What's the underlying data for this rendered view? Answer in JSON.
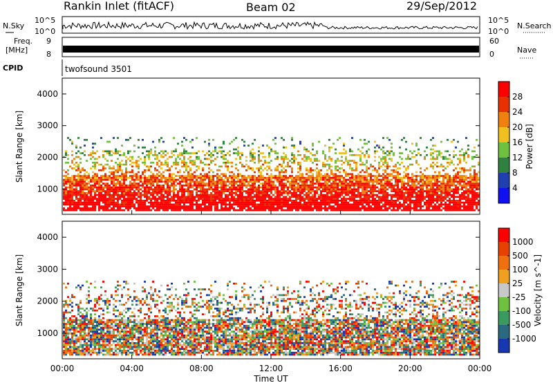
{
  "header": {
    "title": "Rankin Inlet (fitACF)",
    "beam": "Beam 02",
    "date": "29/Sep/2012"
  },
  "top_panels": {
    "nsky_label": "N.Sky",
    "nsearch_label": "N.Search",
    "freq_label_line1": "Freq.",
    "freq_label_line2": "[MHz]",
    "nave_label": "Nave",
    "cpid_label": "CPID",
    "cpid_value": "twofsound 3501",
    "noise_left_top": "10^5",
    "noise_left_bottom": "10^0",
    "noise_right_top": "10^5",
    "noise_right_bottom": "10^0",
    "freq_left_top": "9",
    "freq_left_bottom": "8",
    "nave_right_top": "60",
    "nave_right_bottom": "0"
  },
  "chart_data": [
    {
      "type": "heatmap",
      "name": "power",
      "xlabel": "",
      "ylabel": "Slant Range [km]",
      "x_ticks": [
        "00:00",
        "04:00",
        "08:00",
        "12:00",
        "16:00",
        "20:00",
        "00:00"
      ],
      "xlim_hours": [
        0,
        24
      ],
      "ylim": [
        200,
        4500
      ],
      "y_ticks": [
        1000,
        2000,
        3000,
        4000
      ],
      "colorbar": {
        "label": "Power [dB]",
        "ticks": [
          "4",
          "8",
          "12",
          "16",
          "20",
          "24",
          "28"
        ],
        "colors": [
          "#1010f0",
          "#2040b0",
          "#308040",
          "#70c040",
          "#f0c020",
          "#f08010",
          "#e83000",
          "#ff0000"
        ]
      }
    },
    {
      "type": "heatmap",
      "name": "velocity",
      "xlabel": "Time UT",
      "ylabel": "Slant Range [km]",
      "x_ticks": [
        "00:00",
        "04:00",
        "08:00",
        "12:00",
        "16:00",
        "20:00",
        "00:00"
      ],
      "xlim_hours": [
        0,
        24
      ],
      "ylim": [
        200,
        4500
      ],
      "y_ticks": [
        1000,
        2000,
        3000,
        4000
      ],
      "colorbar": {
        "label": "Velocity [m s^-1]",
        "ticks": [
          "1000",
          "500",
          "100",
          "25",
          "-25",
          "-100",
          "-500",
          "-1000"
        ],
        "colors": [
          "#1838b0",
          "#2a6a80",
          "#3a9a60",
          "#70c040",
          "#c8c8c8",
          "#f0a020",
          "#f07010",
          "#e84000",
          "#ff0000"
        ]
      }
    }
  ]
}
